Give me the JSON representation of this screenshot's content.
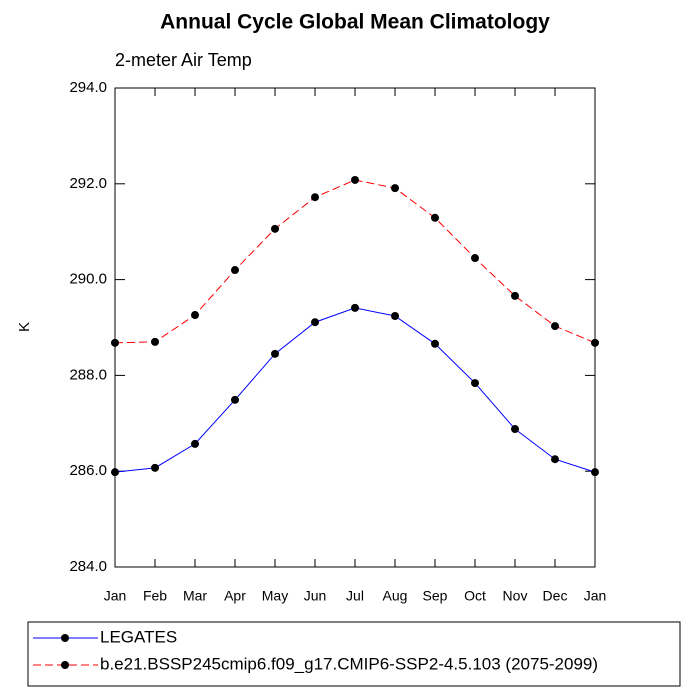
{
  "chart_data": {
    "type": "line",
    "title": "Annual Cycle Global Mean Climatology",
    "subtitle": "2-meter Air Temp",
    "y_label": "K",
    "categories": [
      "Jan",
      "Feb",
      "Mar",
      "Apr",
      "May",
      "Jun",
      "Jul",
      "Aug",
      "Sep",
      "Oct",
      "Nov",
      "Dec",
      "Jan"
    ],
    "series": [
      {
        "name": "LEGATES",
        "color": "#0000ff",
        "dashed": false,
        "values": [
          285.98,
          286.07,
          286.57,
          287.49,
          288.45,
          289.11,
          289.41,
          289.24,
          288.66,
          287.84,
          286.88,
          286.25,
          285.98
        ]
      },
      {
        "name": "b.e21.BSSP245cmip6.f09_g17.CMIP6-SSP2-4.5.103 (2075-2099)",
        "color": "#ff0000",
        "dashed": true,
        "values": [
          288.68,
          288.7,
          289.26,
          290.2,
          291.06,
          291.72,
          292.08,
          291.91,
          291.29,
          290.45,
          289.66,
          289.03,
          288.68
        ]
      }
    ],
    "ylim": [
      284,
      294
    ],
    "yticks": [
      {
        "value": 284,
        "label": "284.0"
      },
      {
        "value": 286,
        "label": "286.0"
      },
      {
        "value": 288,
        "label": "288.0"
      },
      {
        "value": 290,
        "label": "290.0"
      },
      {
        "value": 292,
        "label": "292.0"
      },
      {
        "value": 294,
        "label": "294.0"
      }
    ],
    "legend_position": "bottom"
  }
}
